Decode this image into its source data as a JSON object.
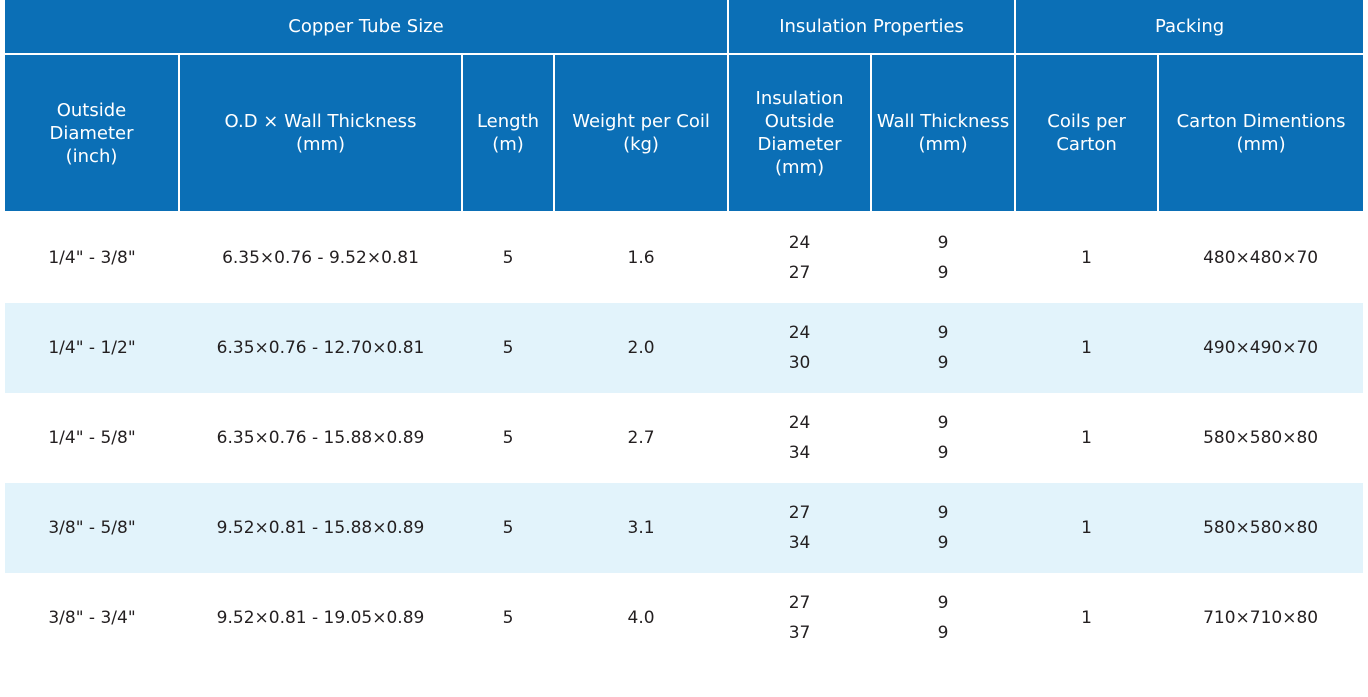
{
  "header": {
    "groups": [
      "Copper  Tube Size",
      "Insulation Properties",
      "Packing"
    ],
    "columns": [
      [
        "Outside",
        "Diameter",
        "(inch)"
      ],
      [
        "O.D × Wall Thickness",
        "(mm)"
      ],
      [
        "Length",
        "(m)"
      ],
      [
        "Weight per Coil",
        "(kg)"
      ],
      [
        "Insulation",
        "Outside",
        "Diameter",
        "(mm)"
      ],
      [
        "Wall Thickness",
        "(mm)"
      ],
      [
        "Coils per",
        "Carton"
      ],
      [
        "Carton Dimentions",
        "(mm)"
      ]
    ]
  },
  "rows": [
    {
      "od_inch": "1/4\" - 3/8\"",
      "od_wall": "6.35×0.76 - 9.52×0.81",
      "length": "5",
      "weight": "1.6",
      "ins_od": [
        "24",
        "27"
      ],
      "wall": [
        "9",
        "9"
      ],
      "coils": "1",
      "carton": "480×480×70"
    },
    {
      "od_inch": "1/4\" - 1/2\"",
      "od_wall": "6.35×0.76 - 12.70×0.81",
      "length": "5",
      "weight": "2.0",
      "ins_od": [
        "24",
        "30"
      ],
      "wall": [
        "9",
        "9"
      ],
      "coils": "1",
      "carton": "490×490×70"
    },
    {
      "od_inch": "1/4\" - 5/8\"",
      "od_wall": "6.35×0.76 - 15.88×0.89",
      "length": "5",
      "weight": "2.7",
      "ins_od": [
        "24",
        "34"
      ],
      "wall": [
        "9",
        "9"
      ],
      "coils": "1",
      "carton": "580×580×80"
    },
    {
      "od_inch": "3/8\" - 5/8\"",
      "od_wall": "9.52×0.81 - 15.88×0.89",
      "length": "5",
      "weight": "3.1",
      "ins_od": [
        "27",
        "34"
      ],
      "wall": [
        "9",
        "9"
      ],
      "coils": "1",
      "carton": "580×580×80"
    },
    {
      "od_inch": "3/8\" - 3/4\"",
      "od_wall": "9.52×0.81 - 19.05×0.89",
      "length": "5",
      "weight": "4.0",
      "ins_od": [
        "27",
        "37"
      ],
      "wall": [
        "9",
        "9"
      ],
      "coils": "1",
      "carton": "710×710×80"
    }
  ],
  "colors": {
    "header_bg": "#0b6fb6",
    "stripe_bg": "#e2f3fb",
    "text": "#231f20"
  }
}
